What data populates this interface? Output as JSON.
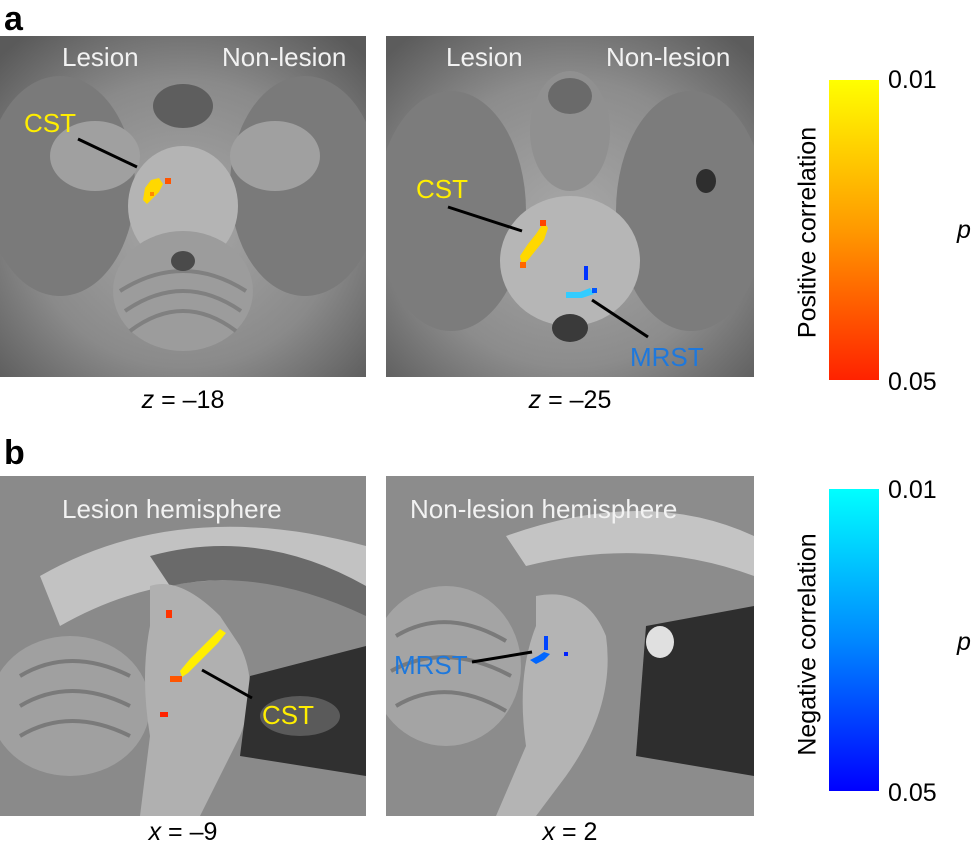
{
  "panel_a": {
    "letter": "a",
    "image1": {
      "left_label": "Lesion",
      "right_label": "Non-lesion",
      "tract_label": "CST",
      "coord_var": "z",
      "coord_val": " = –18"
    },
    "image2": {
      "left_label": "Lesion",
      "right_label": "Non-lesion",
      "tract_label_1": "CST",
      "tract_label_2": "MRST",
      "coord_var": "z",
      "coord_val": " = –25"
    }
  },
  "panel_b": {
    "letter": "b",
    "image1": {
      "title": "Lesion hemisphere",
      "tract_label": "CST",
      "coord_var": "x",
      "coord_val": " = –9"
    },
    "image2": {
      "title": "Non-lesion hemisphere",
      "tract_label": "MRST",
      "coord_var": "x",
      "coord_val": " = 2"
    }
  },
  "colorbars": {
    "positive": {
      "title": "Positive correlation",
      "top_tick": "0.01",
      "bottom_tick": "0.05",
      "variable": "p",
      "colors": [
        "#ffff00",
        "#ff9900",
        "#ff2200"
      ]
    },
    "negative": {
      "title": "Negative correlation",
      "top_tick": "0.01",
      "bottom_tick": "0.05",
      "variable": "p",
      "colors": [
        "#00ffff",
        "#0088ff",
        "#0000ff"
      ]
    }
  }
}
